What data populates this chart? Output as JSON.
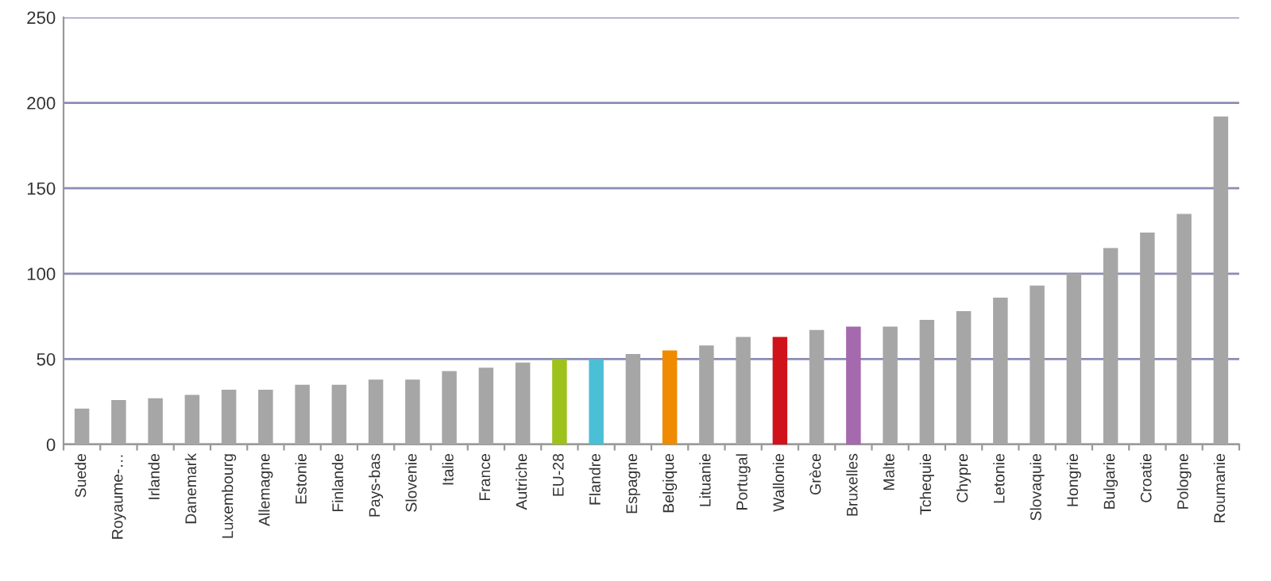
{
  "chart_data": {
    "type": "bar",
    "categories": [
      "Suede",
      "Royaume-…",
      "Irlande",
      "Danemark",
      "Luxembourg",
      "Allemagne",
      "Estonie",
      "Finlande",
      "Pays-bas",
      "Slovenie",
      "Italie",
      "France",
      "Autriche",
      "EU-28",
      "Flandre",
      "Espagne",
      "Belgique",
      "Lituanie",
      "Portugal",
      "Wallonie",
      "Grèce",
      "Bruxelles",
      "Malte",
      "Tchequie",
      "Chypre",
      "Letonie",
      "Slovaquie",
      "Hongrie",
      "Bulgarie",
      "Croatie",
      "Pologne",
      "Roumanie"
    ],
    "values": [
      21,
      26,
      27,
      29,
      32,
      32,
      35,
      35,
      38,
      38,
      43,
      45,
      48,
      50,
      50,
      53,
      55,
      58,
      63,
      63,
      67,
      69,
      69,
      73,
      78,
      86,
      93,
      100,
      115,
      124,
      135,
      192
    ],
    "colors": [
      "#a6a6a6",
      "#a6a6a6",
      "#a6a6a6",
      "#a6a6a6",
      "#a6a6a6",
      "#a6a6a6",
      "#a6a6a6",
      "#a6a6a6",
      "#a6a6a6",
      "#a6a6a6",
      "#a6a6a6",
      "#a6a6a6",
      "#a6a6a6",
      "#9dc21b",
      "#4bbfd6",
      "#a6a6a6",
      "#f08a00",
      "#a6a6a6",
      "#a6a6a6",
      "#d0121b",
      "#a6a6a6",
      "#a569ad",
      "#a6a6a6",
      "#a6a6a6",
      "#a6a6a6",
      "#a6a6a6",
      "#a6a6a6",
      "#a6a6a6",
      "#a6a6a6",
      "#a6a6a6",
      "#a6a6a6",
      "#a6a6a6"
    ],
    "ylim": [
      0,
      250
    ],
    "yticks": [
      0,
      50,
      100,
      150,
      200,
      250
    ],
    "grid": "y"
  }
}
